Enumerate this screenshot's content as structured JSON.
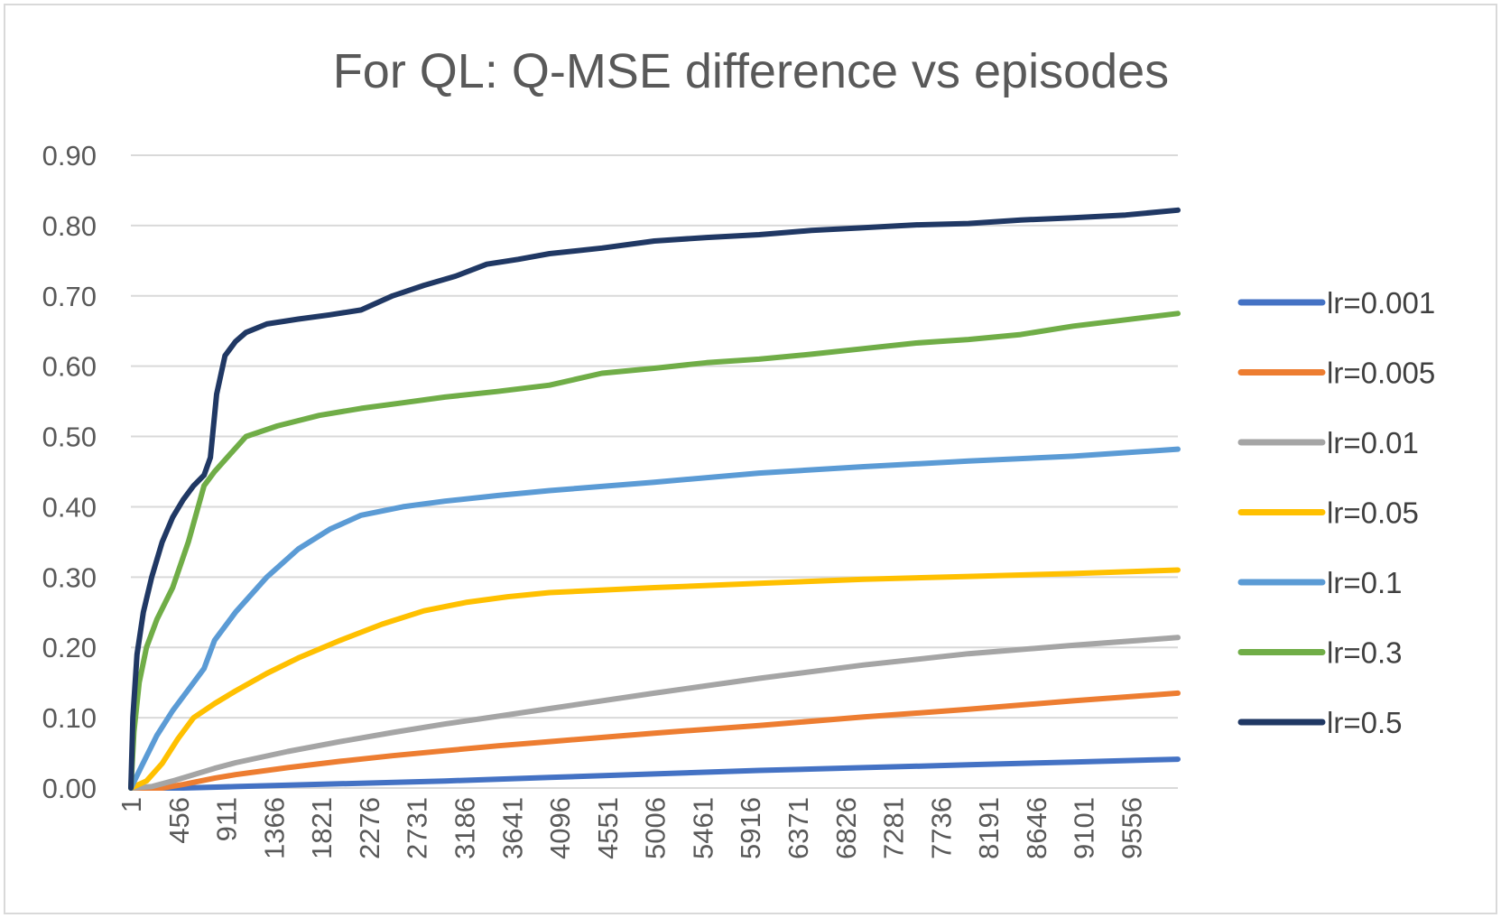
{
  "chart_data": {
    "type": "line",
    "title": "For QL: Q-MSE difference vs episodes",
    "xlabel": "",
    "ylabel": "",
    "x_tick_labels": [
      "1",
      "456",
      "911",
      "1366",
      "1821",
      "2276",
      "2731",
      "3186",
      "3641",
      "4096",
      "4551",
      "5006",
      "5461",
      "5916",
      "6371",
      "6826",
      "7281",
      "7736",
      "8191",
      "8646",
      "9101",
      "9556"
    ],
    "x_range": [
      1,
      10000
    ],
    "y_tick_labels": [
      "0.00",
      "0.10",
      "0.20",
      "0.30",
      "0.40",
      "0.50",
      "0.60",
      "0.70",
      "0.80",
      "0.90"
    ],
    "ylim": [
      0,
      0.9
    ],
    "grid": "horizontal",
    "legend_position": "right",
    "series": [
      {
        "name": "lr=0.001",
        "color": "#4472c4",
        "x": [
          1,
          500,
          1000,
          2000,
          3000,
          4000,
          5000,
          6000,
          7000,
          8000,
          9000,
          10000
        ],
        "y": [
          0.0,
          0.0,
          0.002,
          0.006,
          0.01,
          0.015,
          0.02,
          0.025,
          0.029,
          0.033,
          0.037,
          0.041
        ]
      },
      {
        "name": "lr=0.005",
        "color": "#ed7d31",
        "x": [
          1,
          300,
          500,
          800,
          1000,
          1500,
          2000,
          2500,
          3000,
          3500,
          4000,
          5000,
          6000,
          7000,
          8000,
          9000,
          10000
        ],
        "y": [
          0.0,
          0.0,
          0.005,
          0.014,
          0.019,
          0.029,
          0.038,
          0.046,
          0.053,
          0.06,
          0.066,
          0.078,
          0.089,
          0.101,
          0.112,
          0.124,
          0.135
        ]
      },
      {
        "name": "lr=0.01",
        "color": "#a5a5a5",
        "x": [
          1,
          200,
          400,
          600,
          800,
          1000,
          1500,
          2000,
          2500,
          3000,
          3500,
          4000,
          5000,
          6000,
          7000,
          8000,
          9000,
          10000
        ],
        "y": [
          0.0,
          0.002,
          0.01,
          0.019,
          0.028,
          0.036,
          0.052,
          0.066,
          0.079,
          0.091,
          0.102,
          0.113,
          0.135,
          0.156,
          0.175,
          0.191,
          0.203,
          0.214
        ]
      },
      {
        "name": "lr=0.05",
        "color": "#ffc000",
        "x": [
          1,
          150,
          300,
          450,
          600,
          800,
          1000,
          1300,
          1600,
          2000,
          2400,
          2800,
          3200,
          3600,
          4000,
          5000,
          6000,
          7000,
          8000,
          9000,
          10000
        ],
        "y": [
          0.0,
          0.01,
          0.035,
          0.07,
          0.1,
          0.12,
          0.138,
          0.163,
          0.185,
          0.21,
          0.233,
          0.252,
          0.264,
          0.272,
          0.278,
          0.285,
          0.291,
          0.297,
          0.301,
          0.305,
          0.31
        ]
      },
      {
        "name": "lr=0.1",
        "color": "#5b9bd5",
        "x": [
          1,
          100,
          250,
          400,
          550,
          700,
          800,
          1000,
          1300,
          1600,
          1900,
          2200,
          2600,
          3000,
          3500,
          4000,
          5000,
          6000,
          7000,
          8000,
          9000,
          10000
        ],
        "y": [
          0.0,
          0.03,
          0.075,
          0.11,
          0.14,
          0.17,
          0.21,
          0.25,
          0.3,
          0.34,
          0.368,
          0.388,
          0.4,
          0.408,
          0.416,
          0.423,
          0.435,
          0.448,
          0.457,
          0.465,
          0.472,
          0.482
        ]
      },
      {
        "name": "lr=0.3",
        "color": "#70ad47",
        "x": [
          1,
          30,
          80,
          150,
          250,
          400,
          550,
          700,
          800,
          950,
          1100,
          1400,
          1800,
          2200,
          2600,
          3000,
          3500,
          4000,
          4500,
          5000,
          5500,
          6000,
          6500,
          7000,
          7500,
          8000,
          8500,
          9000,
          9500,
          10000
        ],
        "y": [
          0.0,
          0.08,
          0.15,
          0.2,
          0.24,
          0.285,
          0.35,
          0.43,
          0.45,
          0.475,
          0.5,
          0.515,
          0.53,
          0.54,
          0.548,
          0.556,
          0.564,
          0.573,
          0.59,
          0.597,
          0.605,
          0.61,
          0.617,
          0.625,
          0.633,
          0.638,
          0.645,
          0.657,
          0.666,
          0.675
        ]
      },
      {
        "name": "lr=0.5",
        "color": "#203864",
        "x": [
          1,
          20,
          60,
          120,
          200,
          300,
          400,
          500,
          600,
          700,
          760,
          820,
          900,
          1000,
          1100,
          1300,
          1600,
          1900,
          2200,
          2500,
          2800,
          3100,
          3400,
          3700,
          4000,
          4500,
          5000,
          5500,
          6000,
          6500,
          7000,
          7500,
          8000,
          8500,
          9000,
          9500,
          10000
        ],
        "y": [
          0.0,
          0.1,
          0.19,
          0.25,
          0.3,
          0.35,
          0.385,
          0.41,
          0.43,
          0.445,
          0.47,
          0.56,
          0.615,
          0.635,
          0.648,
          0.66,
          0.667,
          0.673,
          0.68,
          0.7,
          0.715,
          0.728,
          0.745,
          0.752,
          0.76,
          0.768,
          0.778,
          0.783,
          0.787,
          0.793,
          0.797,
          0.801,
          0.803,
          0.808,
          0.811,
          0.815,
          0.822
        ]
      }
    ]
  }
}
